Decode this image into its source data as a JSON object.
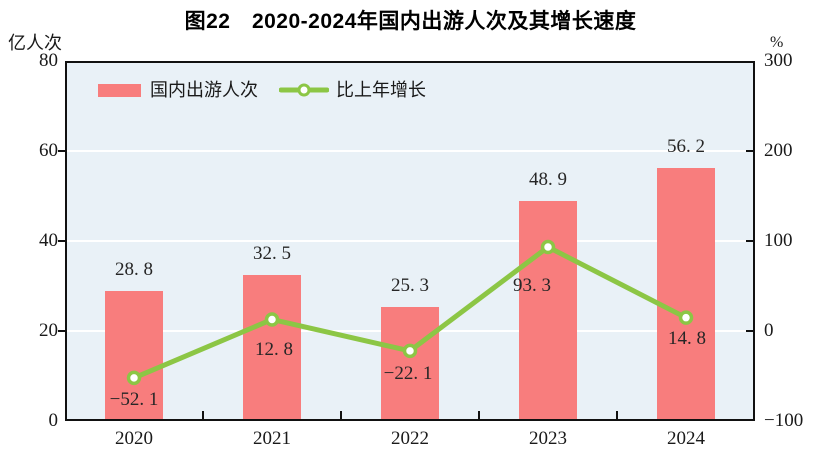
{
  "title": "图22　2020-2024年国内出游人次及其增长速度",
  "left_axis": {
    "unit": "亿人次",
    "ticks": [
      "80",
      "60",
      "40",
      "20",
      "0"
    ]
  },
  "right_axis": {
    "unit": "%",
    "ticks": [
      "300",
      "200",
      "100",
      "0",
      "-100"
    ]
  },
  "legend": {
    "bar_label": "国内出游人次",
    "line_label": "比上年增长"
  },
  "chart_data": {
    "type": "bar+line",
    "title": "图22　2020-2024年国内出游人次及其增长速度",
    "categories": [
      "2020",
      "2021",
      "2022",
      "2023",
      "2024"
    ],
    "series": [
      {
        "name": "国内出游人次",
        "type": "bar",
        "axis": "left",
        "unit": "亿人次",
        "values": [
          28.8,
          32.5,
          25.3,
          48.9,
          56.2
        ],
        "color": "#F87D7D"
      },
      {
        "name": "比上年增长",
        "type": "line",
        "axis": "right",
        "unit": "%",
        "values": [
          -52.1,
          12.8,
          -22.1,
          93.3,
          14.8
        ],
        "color": "#8CC645",
        "marker": "open-circle",
        "marker_fill": "#FFFFFF"
      }
    ],
    "left_ylim": [
      0,
      80
    ],
    "right_ylim": [
      -100,
      300
    ],
    "left_tick_step": 20,
    "right_tick_step": 100,
    "grid": true,
    "grid_color": "#FFFFFF",
    "plot_background": "#E9F1F7",
    "axis_color": "#111111",
    "legend_position": "top-left-inside",
    "value_labels": "shown"
  }
}
